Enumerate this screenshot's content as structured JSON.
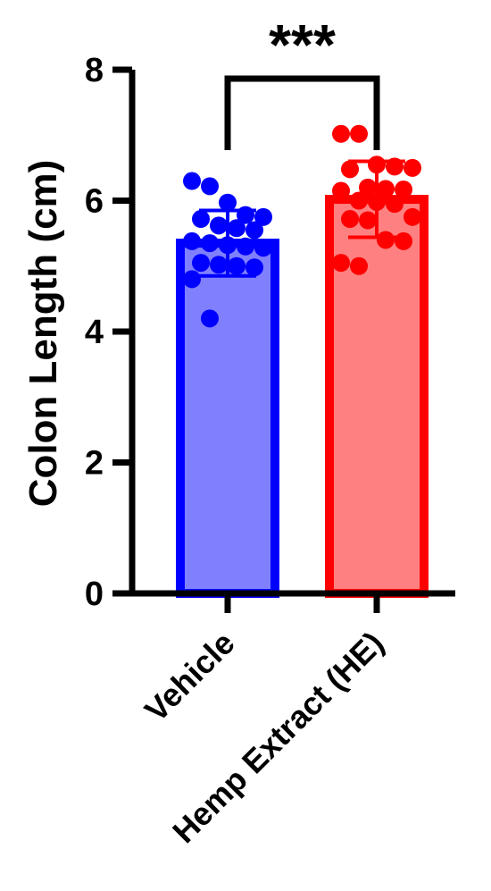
{
  "chart_data": {
    "type": "bar",
    "title": "",
    "xlabel": "",
    "ylabel": "Colon Length (cm)",
    "ylim": [
      0,
      8
    ],
    "yticks": [
      "0",
      "2",
      "4",
      "6",
      "8"
    ],
    "grid": false,
    "legend": "none",
    "categories": [
      "Vehicle",
      "Hemp Extract (HE)"
    ],
    "series": [
      {
        "values": [
          5.35,
          6.02
        ],
        "error": [
          0.5,
          0.58
        ],
        "fill_colors": [
          "#8080ff",
          "#ff8080"
        ],
        "edge_colors": [
          "#0000ff",
          "#ff0000"
        ],
        "points": [
          [
            6.3,
            6.22,
            5.97,
            5.78,
            5.75,
            5.72,
            5.62,
            5.58,
            5.55,
            5.38,
            5.35,
            5.32,
            5.3,
            5.28,
            5.05,
            5.02,
            5.0,
            4.98,
            4.8,
            4.2
          ],
          [
            7.02,
            7.02,
            6.55,
            6.52,
            6.5,
            6.48,
            6.2,
            6.18,
            6.17,
            6.15,
            6.0,
            5.98,
            5.95,
            5.75,
            5.72,
            5.7,
            5.4,
            5.38,
            5.05,
            5.0
          ]
        ]
      }
    ],
    "significance": {
      "label": "***",
      "between": [
        0,
        1
      ]
    }
  }
}
